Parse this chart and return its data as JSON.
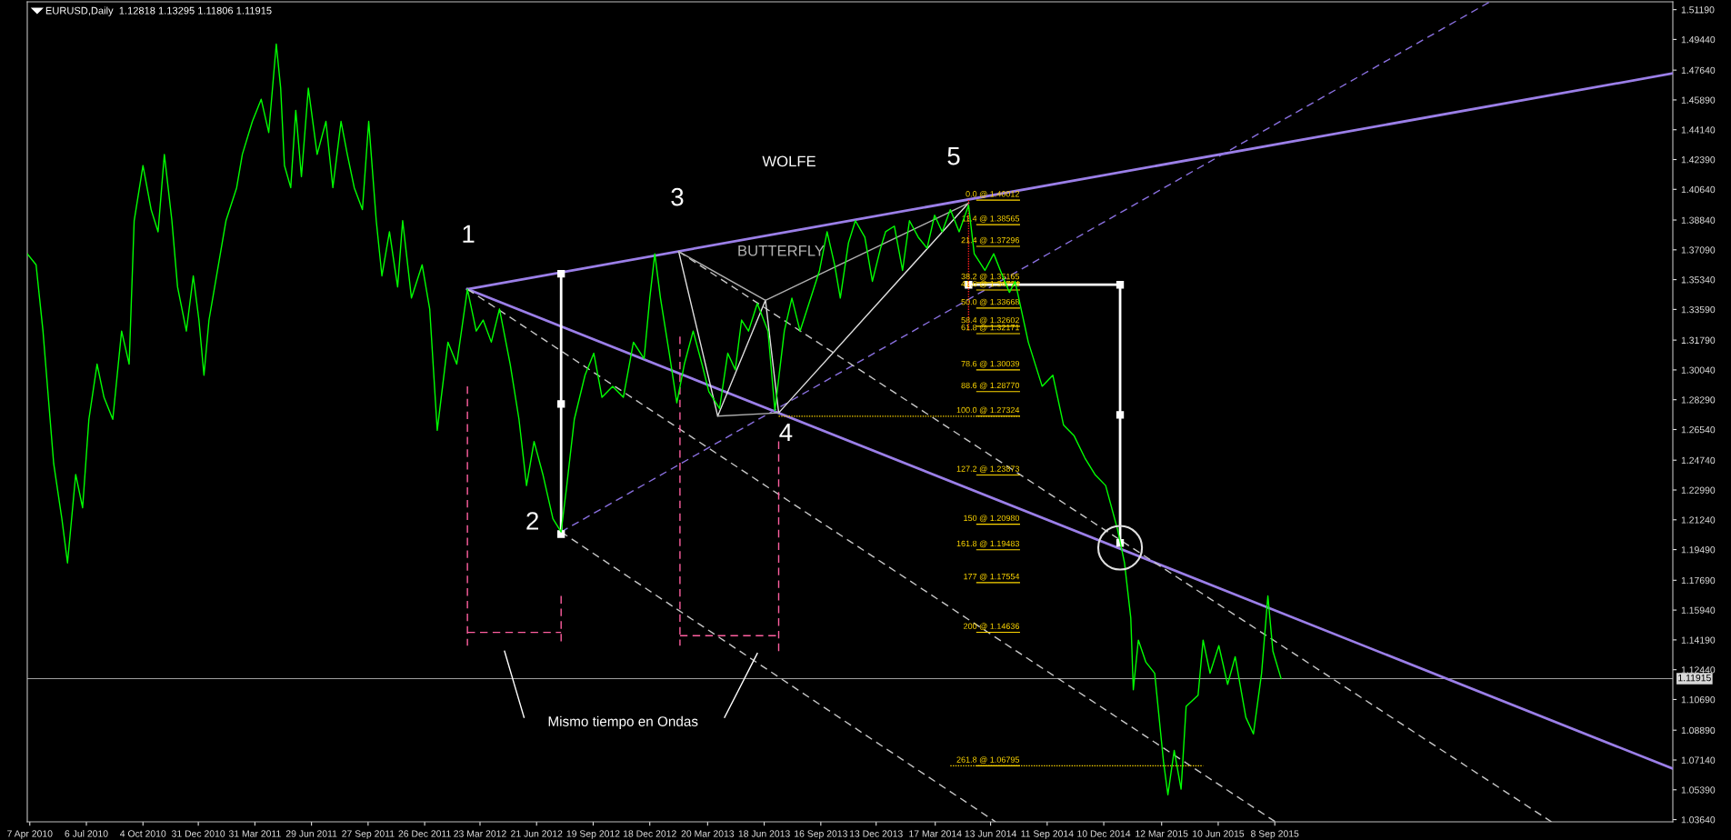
{
  "chart_data": {
    "type": "line",
    "title": "EURUSD,Daily  1.12818 1.13295 1.11806 1.11915",
    "xlim": [
      "2010-04-03",
      "2017-06-02"
    ],
    "ylim": [
      1.0351,
      1.5165
    ],
    "xticks": [
      {
        "value": "2010-04-07",
        "label": "7 Apr 2010"
      },
      {
        "value": "2010-07-06",
        "label": "6 Jul 2010"
      },
      {
        "value": "2010-10-04",
        "label": "4 Oct 2010"
      },
      {
        "value": "2010-12-31",
        "label": "31 Dec 2010"
      },
      {
        "value": "2011-03-31",
        "label": "31 Mar 2011"
      },
      {
        "value": "2011-06-29",
        "label": "29 Jun 2011"
      },
      {
        "value": "2011-09-27",
        "label": "27 Sep 2011"
      },
      {
        "value": "2011-12-26",
        "label": "26 Dec 2011"
      },
      {
        "value": "2012-03-23",
        "label": "23 Mar 2012"
      },
      {
        "value": "2012-06-21",
        "label": "21 Jun 2012"
      },
      {
        "value": "2012-09-19",
        "label": "19 Sep 2012"
      },
      {
        "value": "2012-12-18",
        "label": "18 Dec 2012"
      },
      {
        "value": "2013-03-20",
        "label": "20 Mar 2013"
      },
      {
        "value": "2013-06-18",
        "label": "18 Jun 2013"
      },
      {
        "value": "2013-09-16",
        "label": "16 Sep 2013"
      },
      {
        "value": "2013-12-13",
        "label": "13 Dec 2013"
      },
      {
        "value": "2014-03-17",
        "label": "17 Mar 2014"
      },
      {
        "value": "2014-06-13",
        "label": "13 Jun 2014"
      },
      {
        "value": "2014-09-11",
        "label": "11 Sep 2014"
      },
      {
        "value": "2014-12-10",
        "label": "10 Dec 2014"
      },
      {
        "value": "2015-03-12",
        "label": "12 Mar 2015"
      },
      {
        "value": "2015-06-10",
        "label": "10 Jun 2015"
      },
      {
        "value": "2015-09-08",
        "label": "8 Sep 2015"
      }
    ],
    "yticks": [
      {
        "value": 1.0364,
        "label": "1.03640"
      },
      {
        "value": 1.0539,
        "label": "1.05390"
      },
      {
        "value": 1.0714,
        "label": "1.07140"
      },
      {
        "value": 1.0889,
        "label": "1.08890"
      },
      {
        "value": 1.1069,
        "label": "1.10690"
      },
      {
        "value": 1.1244,
        "label": "1.12440"
      },
      {
        "value": 1.1419,
        "label": "1.14190"
      },
      {
        "value": 1.1594,
        "label": "1.15940"
      },
      {
        "value": 1.1769,
        "label": "1.17690"
      },
      {
        "value": 1.1949,
        "label": "1.19490"
      },
      {
        "value": 1.2124,
        "label": "1.21240"
      },
      {
        "value": 1.2299,
        "label": "1.22990"
      },
      {
        "value": 1.2474,
        "label": "1.24740"
      },
      {
        "value": 1.2654,
        "label": "1.26540"
      },
      {
        "value": 1.2829,
        "label": "1.28290"
      },
      {
        "value": 1.3004,
        "label": "1.30040"
      },
      {
        "value": 1.3179,
        "label": "1.31790"
      },
      {
        "value": 1.3359,
        "label": "1.33590"
      },
      {
        "value": 1.3534,
        "label": "1.35340"
      },
      {
        "value": 1.3709,
        "label": "1.37090"
      },
      {
        "value": 1.3884,
        "label": "1.38840"
      },
      {
        "value": 1.4064,
        "label": "1.40640"
      },
      {
        "value": 1.4239,
        "label": "1.42390"
      },
      {
        "value": 1.4414,
        "label": "1.44140"
      },
      {
        "value": 1.4589,
        "label": "1.45890"
      },
      {
        "value": 1.4764,
        "label": "1.47640"
      },
      {
        "value": 1.4944,
        "label": "1.49440"
      },
      {
        "value": 1.5119,
        "label": "1.51190"
      }
    ],
    "grid": false,
    "legend": false,
    "ref_lines": [
      {
        "axis": "y",
        "value": 1.11915,
        "label": "1.11915",
        "color": "#a0a0a0"
      }
    ],
    "series": [
      {
        "color": "#00ff00",
        "x": [
          "2010-04-03",
          "2010-04-17",
          "2010-04-28",
          "2010-05-15",
          "2010-05-28",
          "2010-06-06",
          "2010-06-19",
          "2010-06-30",
          "2010-07-10",
          "2010-07-23",
          "2010-08-03",
          "2010-08-17",
          "2010-08-31",
          "2010-09-12",
          "2010-09-20",
          "2010-10-04",
          "2010-10-17",
          "2010-10-28",
          "2010-11-07",
          "2010-11-19",
          "2010-11-28",
          "2010-12-12",
          "2010-12-23",
          "2011-01-01",
          "2011-01-09",
          "2011-01-17",
          "2011-02-01",
          "2011-02-13",
          "2011-03-02",
          "2011-03-11",
          "2011-03-27",
          "2011-04-10",
          "2011-04-22",
          "2011-05-04",
          "2011-05-11",
          "2011-05-17",
          "2011-05-27",
          "2011-06-04",
          "2011-06-13",
          "2011-06-24",
          "2011-07-08",
          "2011-07-22",
          "2011-08-02",
          "2011-08-15",
          "2011-08-25",
          "2011-09-05",
          "2011-09-18",
          "2011-09-28",
          "2011-10-10",
          "2011-10-19",
          "2011-10-31",
          "2011-11-13",
          "2011-11-21",
          "2011-12-05",
          "2011-12-22",
          "2012-01-03",
          "2012-01-15",
          "2012-02-01",
          "2012-02-15",
          "2012-03-03",
          "2012-03-17",
          "2012-03-28",
          "2012-04-10",
          "2012-04-23",
          "2012-05-10",
          "2012-05-24",
          "2012-06-05",
          "2012-06-17",
          "2012-07-01",
          "2012-07-17",
          "2012-07-30",
          "2012-08-08",
          "2012-08-20",
          "2012-09-06",
          "2012-09-20",
          "2012-10-03",
          "2012-10-20",
          "2012-11-06",
          "2012-11-22",
          "2012-12-09",
          "2012-12-18",
          "2012-12-26",
          "2013-01-04",
          "2013-01-18",
          "2013-01-30",
          "2013-02-11",
          "2013-02-25",
          "2013-03-11",
          "2013-03-22",
          "2013-04-08",
          "2013-04-21",
          "2013-05-03",
          "2013-05-13",
          "2013-05-24",
          "2013-06-07",
          "2013-06-24",
          "2013-07-05",
          "2013-07-20",
          "2013-08-01",
          "2013-08-14",
          "2013-08-31",
          "2013-09-14",
          "2013-09-26",
          "2013-10-08",
          "2013-10-17",
          "2013-10-30",
          "2013-11-10",
          "2013-11-25",
          "2013-12-07",
          "2013-12-20",
          "2013-12-28",
          "2014-01-11",
          "2014-01-24",
          "2014-02-04",
          "2014-02-18",
          "2014-03-04",
          "2014-03-16",
          "2014-03-28",
          "2014-04-10",
          "2014-04-24",
          "2014-05-09",
          "2014-05-18",
          "2014-06-04",
          "2014-06-18",
          "2014-07-02",
          "2014-07-13",
          "2014-07-22",
          "2014-08-12",
          "2014-09-03",
          "2014-09-20",
          "2014-10-07",
          "2014-10-24",
          "2014-11-10",
          "2014-11-26",
          "2014-12-13",
          "2015-01-01",
          "2015-01-12",
          "2015-01-22",
          "2015-01-26",
          "2015-02-03",
          "2015-02-15",
          "2015-03-01",
          "2015-03-15",
          "2015-03-22",
          "2015-04-01",
          "2015-04-12",
          "2015-04-20",
          "2015-05-09",
          "2015-05-17",
          "2015-05-28",
          "2015-06-11",
          "2015-06-25",
          "2015-07-07",
          "2015-07-24",
          "2015-08-05",
          "2015-08-18",
          "2015-08-28",
          "2015-09-05",
          "2015-09-18"
        ],
        "values": [
          1.3686,
          1.3621,
          1.3232,
          1.2454,
          1.213,
          1.1871,
          1.239,
          1.2195,
          1.2714,
          1.3038,
          1.2843,
          1.2714,
          1.3232,
          1.3038,
          1.388,
          1.4204,
          1.3945,
          1.3815,
          1.4269,
          1.388,
          1.3491,
          1.3232,
          1.3556,
          1.3297,
          1.2973,
          1.3297,
          1.3621,
          1.388,
          1.4074,
          1.4269,
          1.4463,
          1.4593,
          1.4398,
          1.4917,
          1.4658,
          1.4204,
          1.4074,
          1.4528,
          1.4139,
          1.4658,
          1.4269,
          1.4463,
          1.4074,
          1.4463,
          1.4269,
          1.4074,
          1.3945,
          1.4463,
          1.388,
          1.3556,
          1.3815,
          1.3491,
          1.388,
          1.3426,
          1.3621,
          1.3362,
          1.2649,
          1.3167,
          1.3038,
          1.3478,
          1.3232,
          1.3297,
          1.3167,
          1.3362,
          1.3038,
          1.2714,
          1.2325,
          1.2584,
          1.239,
          1.213,
          1.2053,
          1.2325,
          1.2714,
          1.2973,
          1.3102,
          1.2843,
          1.2908,
          1.2843,
          1.3167,
          1.307,
          1.3426,
          1.3686,
          1.3426,
          1.3102,
          1.2811,
          1.3038,
          1.3232,
          1.3038,
          1.2876,
          1.2778,
          1.3102,
          1.3005,
          1.3297,
          1.3232,
          1.3394,
          1.3232,
          1.2765,
          1.3232,
          1.3426,
          1.3232,
          1.3426,
          1.3588,
          1.3815,
          1.3621,
          1.3426,
          1.375,
          1.388,
          1.3783,
          1.3524,
          1.3718,
          1.3815,
          1.3848,
          1.3588,
          1.388,
          1.3783,
          1.3718,
          1.3912,
          1.3815,
          1.3945,
          1.3815,
          1.3971,
          1.3686,
          1.3588,
          1.3686,
          1.3556,
          1.3459,
          1.3524,
          1.3167,
          1.2908,
          1.2973,
          1.2681,
          1.2616,
          1.2487,
          1.239,
          1.2325,
          1.2066,
          1.1871,
          1.1547,
          1.1126,
          1.1418,
          1.1288,
          1.1223,
          1.0705,
          1.051,
          1.077,
          1.0543,
          1.1029,
          1.1094,
          1.1418,
          1.1223,
          1.1385,
          1.1158,
          1.132,
          1.0964,
          1.0867,
          1.1223,
          1.1677,
          1.1353,
          1.1192
        ]
      },
      {
        "color": "#9b7fe8",
        "line_style": "solid",
        "x": [
          "2012-03-03",
          "2017-06-02"
        ],
        "values": [
          1.3478,
          1.4745
        ]
      },
      {
        "color": "#9b7fe8",
        "line_style": "solid",
        "x": [
          "2012-03-03",
          "2017-06-02"
        ],
        "values": [
          1.3478,
          1.0663
        ]
      },
      {
        "color": "#8a70e0",
        "line_style": "dashed",
        "x": [
          "2012-07-30",
          "2016-08-15"
        ],
        "values": [
          1.2053,
          1.5165
        ]
      },
      {
        "color": "#c8c8c8",
        "line_style": "dashed",
        "x": [
          "2013-02-02",
          "2016-11-21"
        ],
        "values": [
          1.3699,
          1.0351
        ]
      },
      {
        "color": "#c8c8c8",
        "line_style": "dashed",
        "x": [
          "2012-03-03",
          "2015-09-09"
        ],
        "values": [
          1.3478,
          1.0351
        ]
      },
      {
        "color": "#c8c8c8",
        "line_style": "dashed",
        "x": [
          "2012-07-30",
          "2014-06-21"
        ],
        "values": [
          1.2053,
          1.0351
        ]
      },
      {
        "color": "#e0e0e0",
        "x": [
          "2013-02-02",
          "2013-04-05",
          "2013-06-20",
          "2013-07-11",
          "2014-05-09"
        ],
        "values": [
          1.3699,
          1.2733,
          1.3413,
          1.2752,
          1.3984
        ]
      },
      {
        "color": "#b0b0b0",
        "x": [
          "2013-02-02",
          "2013-06-20",
          "2014-05-09",
          null,
          "2013-04-05",
          "2013-07-11"
        ],
        "values": [
          1.3699,
          1.3413,
          1.3984,
          null,
          1.2733,
          1.2752
        ]
      },
      {
        "color": "#ffffff",
        "marker": "square",
        "x": [
          "2012-07-30",
          "2012-07-30",
          "2012-07-30"
        ],
        "values": [
          1.3569,
          1.2804,
          1.204
        ]
      },
      {
        "color": "#ffffff",
        "marker": "square",
        "x": [
          "2014-05-09",
          "2015-01-05",
          "2015-01-05",
          "2015-01-05"
        ],
        "values": [
          1.3504,
          1.3504,
          1.274,
          1.1988
        ]
      },
      {
        "color": "#ff5fa0",
        "line_style": "dashed",
        "x": [
          "2012-03-03",
          "2012-03-03",
          null,
          "2012-07-30",
          "2012-07-30",
          null,
          "2012-03-03",
          "2012-07-30",
          null,
          "2013-02-04",
          "2013-02-04",
          null,
          "2013-07-11",
          "2013-07-11",
          null,
          "2013-02-04",
          "2013-07-11"
        ],
        "values": [
          1.2908,
          1.1385,
          null,
          1.1677,
          1.1385,
          null,
          1.1463,
          1.1463,
          null,
          1.32,
          1.1385,
          null,
          1.2584,
          1.1353,
          null,
          1.1444,
          1.1444
        ]
      },
      {
        "color": "#ffffff",
        "x": [
          "2012-06-01",
          "2012-05-01",
          null,
          "2013-04-16",
          "2013-06-07"
        ],
        "values": [
          1.0964,
          1.1353,
          null,
          1.0964,
          1.134
        ]
      },
      {
        "color": "#ffd700",
        "line_style": "dotted",
        "x": [
          "2013-07-11",
          "2014-07-30"
        ],
        "values": [
          1.2732,
          1.2732
        ]
      },
      {
        "color": "#ffd700",
        "line_style": "dotted",
        "x": [
          "2014-04-10",
          "2015-05-17"
        ],
        "values": [
          1.068,
          1.068
        ]
      },
      {
        "color": "#ff2020",
        "line_style": "dotted",
        "x": [
          "2014-05-09",
          "2014-05-09"
        ],
        "values": [
          1.4001,
          1.3232
        ]
      },
      {
        "type": "scatter",
        "color": "#e0e0e0",
        "marker": "circle",
        "x": [
          "2015-01-05"
        ],
        "values": [
          1.196
        ]
      }
    ],
    "annotations": [
      "1",
      "2",
      "3",
      "4",
      "5",
      "WOLFE",
      "BUTTERFLY",
      "Mismo tiempo en Ondas",
      "0.0 @ 1.40012",
      "11.4 @ 1.38565",
      "21.4 @ 1.37296",
      "38.2 @ 1.35165",
      "41.6 @ 1.34734",
      "50.0 @ 1.33668",
      "58.4 @ 1.32602",
      "61.8 @ 1.32171",
      "78.6 @ 1.30039",
      "88.6 @ 1.28770",
      "100.0 @ 1.27324",
      "127.2 @ 1.23873",
      "150 @ 1.20980",
      "161.8 @ 1.19483",
      "177 @ 1.17554",
      "200 @ 1.14636",
      "261.8 @ 1.06795"
    ]
  }
}
